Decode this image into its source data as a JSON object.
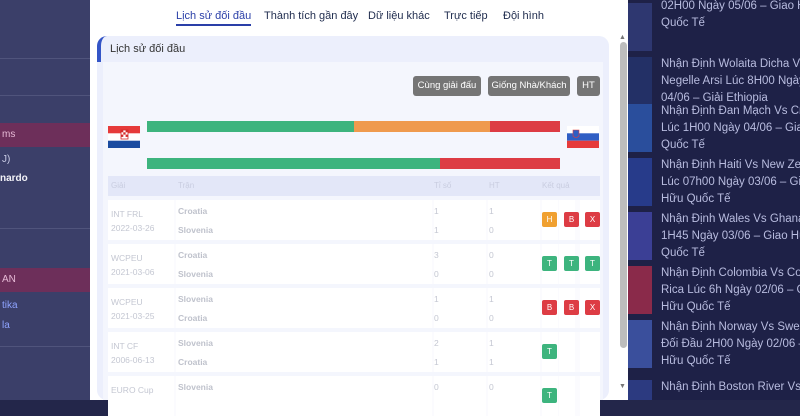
{
  "left_panel": {
    "items": [
      "ms",
      "J)",
      "nardo",
      "AN",
      "tika",
      "la"
    ]
  },
  "right_panel": {
    "items": [
      {
        "lines": [
          "02H00 Ngày 05/06 – Giao H",
          "Quốc Tế"
        ],
        "thumb_color": "#2e3770"
      },
      {
        "lines": [
          "Nhận Định Wolaita Dicha Vs",
          "Negelle Arsi Lúc 8H00 Ngày",
          "04/06 – Giải Ethiopia"
        ],
        "thumb_color": "#233066"
      },
      {
        "lines": [
          "Nhận Định Đan Mạch Vs Cro",
          "Lúc 1H00 Ngày 04/06 – Gia",
          "Quốc Tế"
        ],
        "thumb_color": "#2a4e9c"
      },
      {
        "lines": [
          "Nhận Định Haiti Vs New Ze",
          "Lúc 07h00 Ngày 03/06 – Gia",
          "Hữu Quốc Tế"
        ],
        "thumb_color": "#273b8a"
      },
      {
        "lines": [
          "Nhận Định Wales Vs Ghana",
          "1H45 Ngày 03/06 – Giao Hữ",
          "Quốc Tế"
        ],
        "thumb_color": "#3b3f95"
      },
      {
        "lines": [
          "Nhận Định Colombia Vs Cos",
          "Rica Lúc 6h Ngày 02/06 – G",
          "Hữu Quốc Tế"
        ],
        "thumb_color": "#8a2a4a"
      },
      {
        "lines": [
          "Nhận Định Norway Vs Swed",
          "Đối Đầu 2H00 Ngày 02/06 –",
          "Hữu Quốc Tế"
        ],
        "thumb_color": "#3a4f9c"
      },
      {
        "lines": [
          "Nhận Định Boston River Vs"
        ],
        "thumb_color": "#2c3a80"
      }
    ]
  },
  "tabs": [
    "Lịch sử đối đầu",
    "Thành tích gần đây",
    "Dữ liệu khác",
    "Trực tiếp",
    "Đội hình"
  ],
  "active_tab": 0,
  "section": {
    "title": "Lịch sử đối đầu",
    "buttons": [
      "Cùng giải đấu",
      "Giống Nhà/Khách",
      "HT"
    ]
  },
  "teams": {
    "home": "Croatia",
    "away": "Slovenia"
  },
  "summary_bars": {
    "colors": {
      "win": "#3db47e",
      "draw": "#ef9a4e",
      "loss": "#dd3c44"
    },
    "bar1": {
      "win": 0.5,
      "draw": 0.33,
      "loss": 0.17
    },
    "bar2": {
      "win": 0.71,
      "draw": 0,
      "loss": 0.29
    }
  },
  "table": {
    "columns": [
      "Giải",
      "Trận",
      "Tỉ số",
      "HT",
      "Kết quả"
    ],
    "rows": [
      {
        "league": "INT FRL",
        "date": "2022-03-26",
        "team1": "Croatia",
        "team2": "Slovenia",
        "score1": "1",
        "score2": "1",
        "ht1": "1",
        "ht2": "0",
        "badges": [
          "H",
          "B",
          "X"
        ]
      },
      {
        "league": "WCPEU",
        "date": "2021-03-06",
        "team1": "Croatia",
        "team2": "Slovenia",
        "score1": "3",
        "score2": "0",
        "ht1": "0",
        "ht2": "0",
        "badges": [
          "T",
          "T",
          "T"
        ]
      },
      {
        "league": "WCPEU",
        "date": "2021-03-25",
        "team1": "Slovenia",
        "team2": "Croatia",
        "score1": "1",
        "score2": "0",
        "ht1": "1",
        "ht2": "0",
        "badges": [
          "B",
          "B",
          "X"
        ]
      },
      {
        "league": "INT CF",
        "date": "2006-06-13",
        "team1": "Slovenia",
        "team2": "Croatia",
        "score1": "2",
        "score2": "1",
        "ht1": "1",
        "ht2": "1",
        "badges": [
          "T"
        ]
      },
      {
        "league": "EURO Cup",
        "date": "",
        "team1": "Slovenia",
        "team2": "",
        "score1": "0",
        "score2": "",
        "ht1": "0",
        "ht2": "",
        "badges": [
          "T"
        ]
      }
    ]
  }
}
